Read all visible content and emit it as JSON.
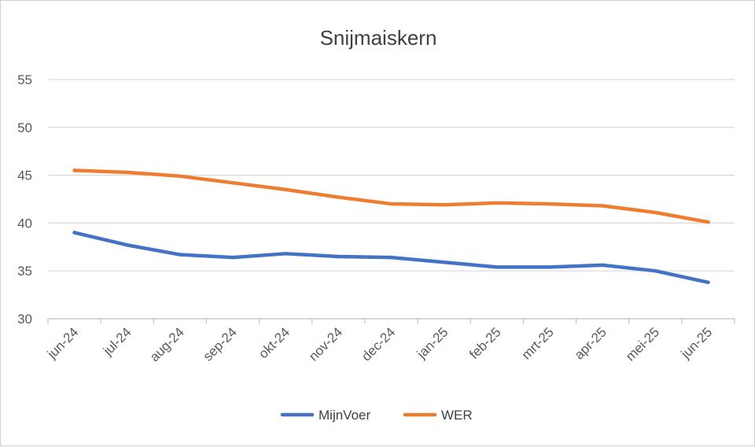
{
  "chart_data": {
    "type": "line",
    "title": "Snijmaiskern",
    "categories": [
      "jun-24",
      "jul-24",
      "aug-24",
      "sep-24",
      "okt-24",
      "nov-24",
      "dec-24",
      "jan-25",
      "feb-25",
      "mrt-25",
      "apr-25",
      "mei-25",
      "jun-25"
    ],
    "ylim": [
      30,
      55
    ],
    "yticks": [
      30,
      35,
      40,
      45,
      50,
      55
    ],
    "grid": true,
    "legend_position": "bottom",
    "series": [
      {
        "name": "MijnVoer",
        "color": "#4472c4",
        "values": [
          39.0,
          37.7,
          36.7,
          36.4,
          36.8,
          36.5,
          36.4,
          35.9,
          35.4,
          35.4,
          35.6,
          35.0,
          33.8
        ]
      },
      {
        "name": "WER",
        "color": "#ed7d31",
        "values": [
          45.5,
          45.3,
          44.9,
          44.2,
          43.5,
          42.7,
          42.0,
          41.9,
          42.1,
          42.0,
          41.8,
          41.1,
          40.1
        ]
      }
    ]
  }
}
